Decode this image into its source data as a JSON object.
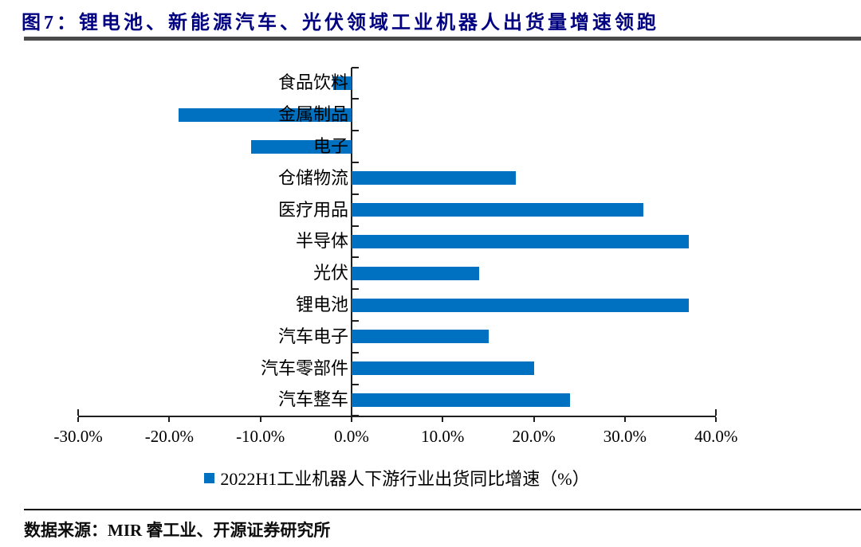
{
  "page": {
    "title": "图7：锂电池、新能源汽车、光伏领域工业机器人出货量增速领跑",
    "source_note": "数据来源：MIR 睿工业、开源证券研究所"
  },
  "chart_data": {
    "type": "bar",
    "orientation": "horizontal",
    "categories": [
      "食品饮料",
      "金属制品",
      "电子",
      "仓储物流",
      "医疗用品",
      "半导体",
      "光伏",
      "锂电池",
      "汽车电子",
      "汽车零部件",
      "汽车整车"
    ],
    "values": [
      -2,
      -19,
      -11,
      18,
      32,
      37,
      14,
      37,
      15,
      20,
      24
    ],
    "unit": "%",
    "xlim": [
      -30,
      40
    ],
    "x_tick_step": 10,
    "x_tick_labels": [
      "-30.0%",
      "-20.0%",
      "-10.0%",
      "0.0%",
      "10.0%",
      "20.0%",
      "30.0%",
      "40.0%"
    ],
    "grid": false,
    "legend": [
      {
        "label": "2022H1工业机器人下游行业出货同比增速（%）",
        "color": "#0070C0",
        "marker": "square"
      }
    ],
    "legend_position": "bottom-center",
    "bar_color": "#0070C0"
  },
  "colors": {
    "title_text": "#000080",
    "top_rule": "#4a4a4a",
    "axis": "#1f1f1f",
    "bar": "#0070C0",
    "text": "#000000"
  }
}
